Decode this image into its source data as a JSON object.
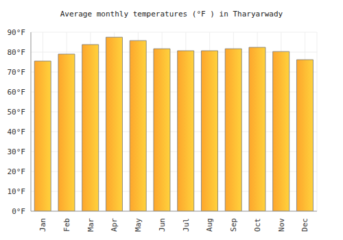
{
  "chart_data": {
    "type": "bar",
    "title": "Average monthly temperatures (°F ) in Tharyarwady",
    "categories": [
      "Jan",
      "Feb",
      "Mar",
      "Apr",
      "May",
      "Jun",
      "Jul",
      "Aug",
      "Sep",
      "Oct",
      "Nov",
      "Dec"
    ],
    "values": [
      75.5,
      79,
      83.8,
      87.5,
      85.8,
      81.7,
      80.7,
      80.7,
      81.7,
      82.4,
      80.3,
      76.2
    ],
    "color": "#fda62c",
    "ylim": [
      0,
      90
    ],
    "yticks": [
      {
        "value": 0,
        "label": "0°F"
      },
      {
        "value": 10,
        "label": "10°F"
      },
      {
        "value": 20,
        "label": "20°F"
      },
      {
        "value": 30,
        "label": "30°F"
      },
      {
        "value": 40,
        "label": "40°F"
      },
      {
        "value": 50,
        "label": "50°F"
      },
      {
        "value": 60,
        "label": "60°F"
      },
      {
        "value": 70,
        "label": "70°F"
      },
      {
        "value": 80,
        "label": "80°F"
      },
      {
        "value": 90,
        "label": "90°F"
      }
    ],
    "grid": true
  }
}
